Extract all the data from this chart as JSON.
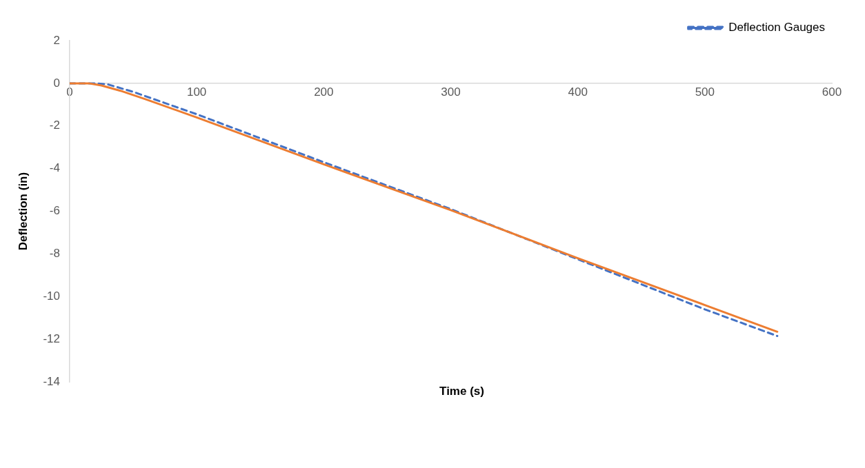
{
  "chart_data": {
    "type": "line",
    "xlabel": "Time (s)",
    "ylabel": "Deflection (in)",
    "xlim": [
      0,
      600
    ],
    "xticks": [
      0,
      100,
      200,
      300,
      400,
      500,
      600
    ],
    "ylim": [
      -14,
      2
    ],
    "yticks": [
      -14,
      -12,
      -10,
      -8,
      -6,
      -4,
      -2,
      0,
      2
    ],
    "grid": false,
    "legend": "top right",
    "marker": "none",
    "series": [
      {
        "color": "#ed7d31",
        "line_style": "solid",
        "x": [
          0,
          15,
          25,
          40,
          60,
          100,
          200,
          300,
          400,
          500,
          557
        ],
        "values": [
          0,
          0,
          -0.1,
          -0.35,
          -0.75,
          -1.6,
          -3.8,
          -5.95,
          -8.2,
          -10.4,
          -11.65
        ]
      },
      {
        "name": "Deflection Gauges",
        "color": "#4472c4",
        "line_style": "dashed",
        "x": [
          0,
          20,
          30,
          50,
          100,
          200,
          300,
          400,
          500,
          557
        ],
        "values": [
          0,
          0,
          -0.05,
          -0.4,
          -1.45,
          -3.7,
          -5.9,
          -8.25,
          -10.6,
          -11.85
        ]
      }
    ]
  }
}
